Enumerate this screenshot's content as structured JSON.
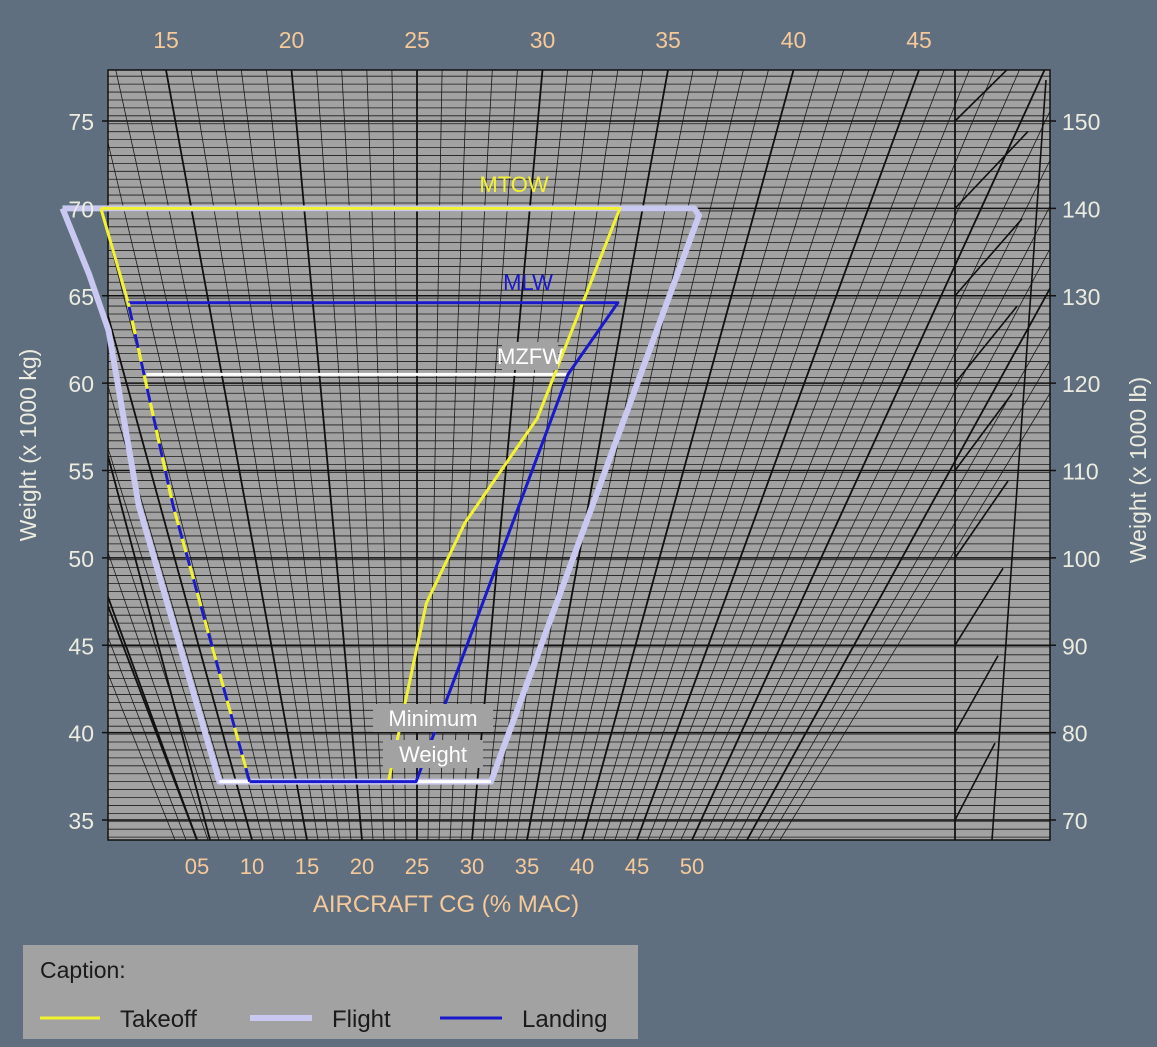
{
  "chart_data": {
    "type": "line",
    "title": "",
    "xlabel": "AIRCRAFT CG (% MAC)",
    "ylabel_left": "Weight (x 1000 kg)",
    "ylabel_right": "Weight (x 1000 lb)",
    "ylim_kg": [
      34,
      78
    ],
    "ylim_lb": [
      75,
      172
    ],
    "yticks_kg": [
      "35",
      "40",
      "45",
      "50",
      "55",
      "60",
      "65",
      "70",
      "75"
    ],
    "yticks_lb": [
      "70",
      "80",
      "90",
      "100",
      "110",
      "120",
      "130",
      "140",
      "150"
    ],
    "top_xticks_mac": [
      "15",
      "20",
      "25",
      "30",
      "35",
      "40",
      "45"
    ],
    "bottom_xticks_mac": [
      "05",
      "10",
      "15",
      "20",
      "25",
      "30",
      "35",
      "40",
      "45",
      "50"
    ],
    "grid": true,
    "annotations": [
      "MTOW",
      "MLW",
      "MZFW",
      "Minimum",
      "Weight"
    ],
    "legend": {
      "title": "Caption:",
      "placement": "bottom-left",
      "items": [
        "Takeoff",
        "Flight",
        "Landing"
      ]
    },
    "colors": {
      "takeoff": "#f2f230",
      "flight": "#c8c8f0",
      "landing": "#1a1acc",
      "mzfw": "#ffffff",
      "minimum": "#ffffff",
      "tick_orange": "#f5c99a",
      "axis_text_light": "#ecebe0",
      "plot_bg": "#a2a2a2",
      "page_bg": "#5f6f7f"
    },
    "series": [
      {
        "name": "Flight",
        "mac_weight_kg": [
          [
            -1.5,
            70
          ],
          [
            26.5,
            70
          ],
          [
            26.8,
            69.6
          ],
          [
            24,
            37.2
          ],
          [
            1.5,
            37.2
          ],
          [
            -0.7,
            53
          ],
          [
            -0.5,
            63
          ],
          [
            -0.9,
            66.2
          ],
          [
            -1.5,
            70
          ]
        ]
      },
      {
        "name": "Takeoff",
        "mac_weight_kg": [
          [
            0.2,
            70
          ],
          [
            23.2,
            70
          ],
          [
            21.5,
            58
          ],
          [
            18.5,
            52
          ],
          [
            16.8,
            47.4
          ],
          [
            15.5,
            37.2
          ],
          [
            4.0,
            37.2
          ],
          [
            1.3,
            53
          ],
          [
            0.7,
            64.6
          ],
          [
            0.2,
            70
          ]
        ]
      },
      {
        "name": "Landing",
        "mac_weight_kg": [
          [
            0.7,
            64.6
          ],
          [
            24.2,
            64.6
          ],
          [
            22.6,
            60.5
          ],
          [
            17.8,
            37.2
          ],
          [
            4.0,
            37.2
          ],
          [
            1.3,
            53
          ],
          [
            0.7,
            64.6
          ]
        ]
      },
      {
        "name": "MZFW",
        "mac_weight_kg": [
          [
            1.0,
            60.5
          ],
          [
            22.6,
            60.5
          ]
        ]
      },
      {
        "name": "Minimum Weight",
        "mac_weight_kg": [
          [
            1.5,
            37.2
          ],
          [
            24,
            37.2
          ]
        ]
      }
    ]
  }
}
